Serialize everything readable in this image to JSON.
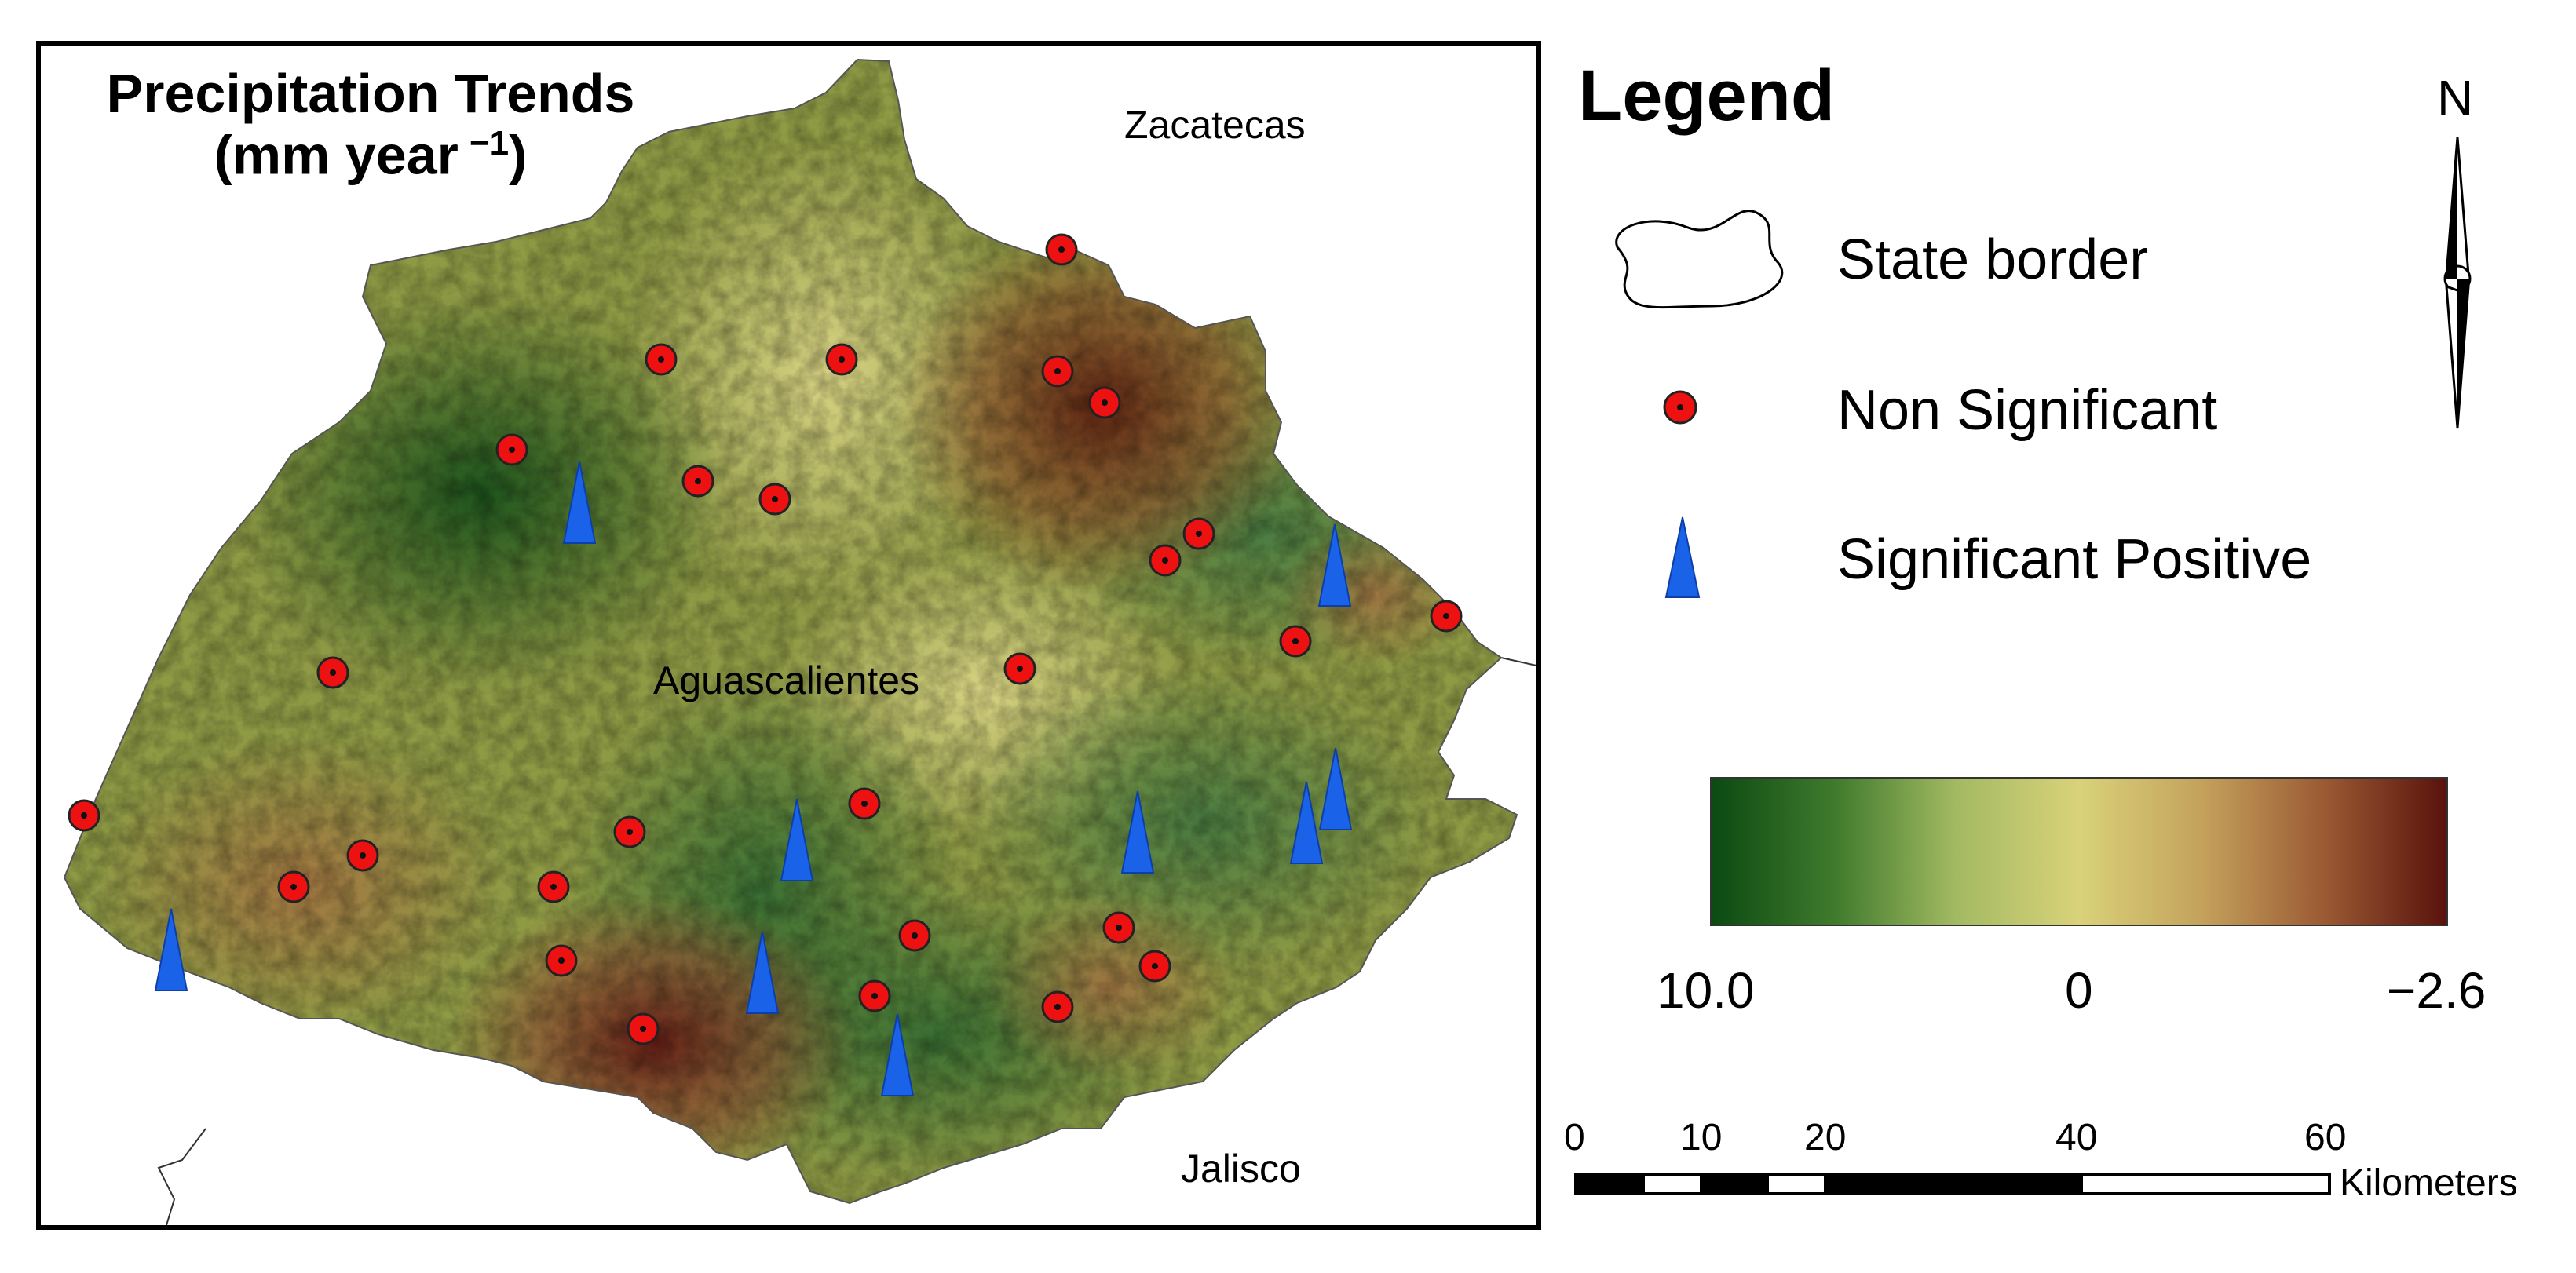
{
  "map": {
    "title_line1": "Precipitation Trends",
    "title_line2_pre": "(mm year",
    "title_sup": "−1",
    "title_line2_post": ")",
    "places": {
      "north": "Zacatecas",
      "center": "Aguascalientes",
      "south": "Jalisco"
    }
  },
  "legend": {
    "heading": "Legend",
    "items": [
      {
        "label": "State border",
        "symbol": "state-border-outline"
      },
      {
        "label": "Non Significant",
        "symbol": "red-circle-dot",
        "color": "#ee1111"
      },
      {
        "label": "Significant Positive",
        "symbol": "blue-triangle",
        "color": "#1a62e8"
      }
    ],
    "color_ramp": {
      "min_label": "10.0",
      "mid_label": "0",
      "max_label": "−2.6",
      "colors": [
        "#0b4a12",
        "#3f7a2c",
        "#a3ba62",
        "#d9d27a",
        "#c4a25c",
        "#9b5a33",
        "#5a120c"
      ]
    }
  },
  "north_arrow": {
    "letter": "N"
  },
  "scale_bar": {
    "ticks": [
      "0",
      "10",
      "20",
      "40",
      "60"
    ],
    "unit": "Kilometers"
  }
}
